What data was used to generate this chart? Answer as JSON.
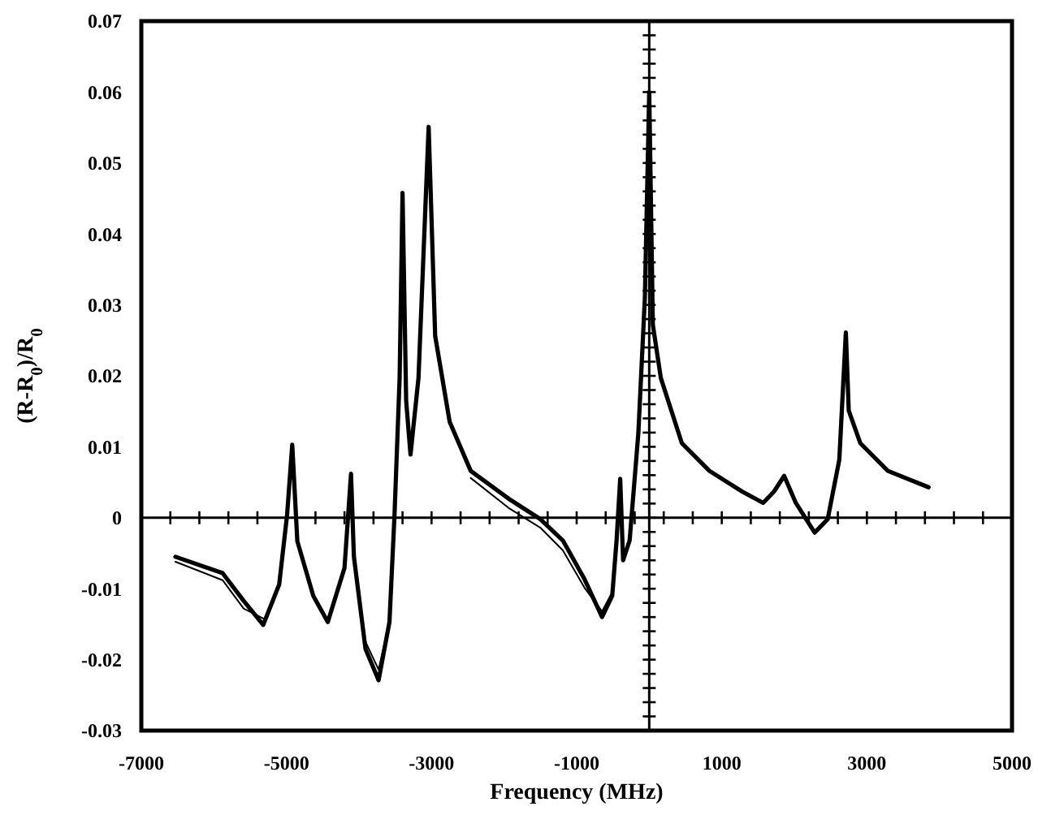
{
  "chart_data": {
    "type": "line",
    "xlabel": "Frequency (MHz)",
    "ylabel": "(R-R$_{0}$)/R$_{0}$",
    "xlim": [
      -7000,
      5000
    ],
    "xticks": [
      -7000,
      -5000,
      -3000,
      -1000,
      1000,
      3000,
      5000
    ],
    "ylim": [
      -0.03,
      0.07
    ],
    "yticks": [
      -0.03,
      -0.02,
      -0.01,
      0,
      0.01,
      0.02,
      0.03,
      0.04,
      0.05,
      0.06,
      0.07
    ],
    "marker": "none",
    "line_style": "solid",
    "x": [
      -6530,
      -5880,
      -5590,
      -5320,
      -5100,
      -4990,
      -4920,
      -4850,
      -4630,
      -4430,
      -4200,
      -4110,
      -4070,
      -3910,
      -3730,
      -3580,
      -3510,
      -3440,
      -3400,
      -3350,
      -3290,
      -3180,
      -3040,
      -2950,
      -2750,
      -2460,
      -1940,
      -1500,
      -1190,
      -890,
      -650,
      -510,
      -450,
      -400,
      -360,
      -270,
      -150,
      -60,
      0,
      50,
      160,
      450,
      830,
      1280,
      1570,
      1720,
      1860,
      2020,
      2280,
      2460,
      2620,
      2710,
      2750,
      2910,
      3290,
      3850
    ],
    "series": [
      {
        "color": "#000000",
        "values": [
          -0.0055,
          -0.0078,
          -0.0117,
          -0.0151,
          -0.0094,
          0.0005,
          0.0103,
          -0.0033,
          -0.011,
          -0.0147,
          -0.0071,
          0.0062,
          -0.0055,
          -0.0185,
          -0.0229,
          -0.0147,
          0.0005,
          0.0197,
          0.0458,
          0.0165,
          0.0089,
          0.0197,
          0.0551,
          0.0256,
          0.0135,
          0.0066,
          0.0027,
          -0.0002,
          -0.0032,
          -0.0087,
          -0.014,
          -0.011,
          -0.0032,
          0.0055,
          -0.006,
          -0.0032,
          0.0119,
          0.031,
          0.06,
          0.0272,
          0.0197,
          0.0105,
          0.0066,
          0.0037,
          0.0021,
          0.0037,
          0.0059,
          0.0021,
          -0.0021,
          -0.0002,
          0.0082,
          0.0261,
          0.0151,
          0.0105,
          0.0066,
          0.0043
        ]
      },
      {
        "color": "#000000",
        "values": [
          -0.0062,
          -0.0088,
          -0.0128,
          -0.0142,
          null,
          null,
          null,
          null,
          null,
          null,
          null,
          null,
          null,
          -0.0175,
          -0.0214,
          -0.0147,
          null,
          null,
          null,
          null,
          null,
          null,
          null,
          null,
          null,
          0.0056,
          0.0014,
          -0.0014,
          -0.0046,
          -0.0099,
          -0.0132,
          -0.0105,
          null,
          null,
          null,
          null,
          null,
          null,
          null,
          null,
          null,
          null,
          null,
          null,
          null,
          null,
          null,
          null,
          null,
          null,
          null,
          null,
          null,
          null,
          null,
          null
        ]
      }
    ]
  }
}
